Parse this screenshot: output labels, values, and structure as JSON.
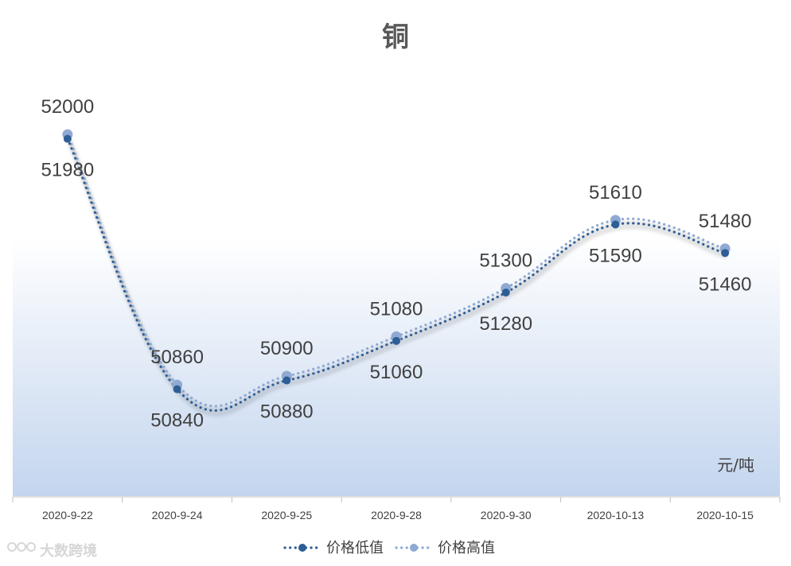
{
  "chart_data": {
    "type": "line",
    "title": "铜",
    "unit": "元/吨",
    "categories": [
      "2020-9-22",
      "2020-9-24",
      "2020-9-25",
      "2020-9-28",
      "2020-9-30",
      "2020-10-13",
      "2020-10-15"
    ],
    "series": [
      {
        "name": "价格低值",
        "values": [
          51980,
          50840,
          50880,
          51060,
          51280,
          51590,
          51460
        ],
        "color": "#2e5e96"
      },
      {
        "name": "价格高值",
        "values": [
          52000,
          50860,
          50900,
          51080,
          51300,
          51610,
          51480
        ],
        "color": "#8fa9d2"
      }
    ],
    "ylim": [
      50350,
      52250
    ],
    "smooth": true,
    "grid": false,
    "legend_position": "bottom",
    "background": {
      "top_color": "#ffffff",
      "bottom_color": "#c3d5ee"
    }
  },
  "watermark": "大数跨境"
}
